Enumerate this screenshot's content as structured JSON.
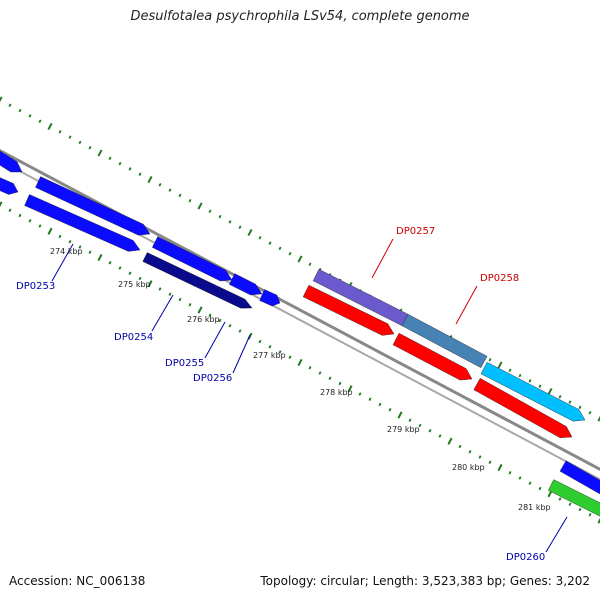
{
  "title": "Desulfotalea psychrophila LSv54, complete genome",
  "footer": {
    "accession": "Accession: NC_006138",
    "stats": "Topology: circular; Length: 3,523,383 bp; Genes: 3,202"
  },
  "colors": {
    "backbone": "#888888",
    "tick": "#1f7a1f",
    "blue": "#0b0bff",
    "dark_blue": "#0a0a8c",
    "purple": "#6a5acd",
    "steel_blue": "#4682b4",
    "light_blue": "#00bfff",
    "red": "#ff0000",
    "green": "#2ecc2e",
    "label_blue": "#0000aa",
    "label_red": "#cc0000"
  },
  "ticks": [
    "274 kbp",
    "275 kbp",
    "276 kbp",
    "277 kbp",
    "278 kbp",
    "279 kbp",
    "280 kbp",
    "281 kbp"
  ],
  "gene_labels": [
    {
      "text": "DP0253",
      "color": "label_blue"
    },
    {
      "text": "DP0254",
      "color": "label_blue"
    },
    {
      "text": "DP0255",
      "color": "label_blue"
    },
    {
      "text": "DP0256",
      "color": "label_blue"
    },
    {
      "text": "DP0257",
      "color": "label_red"
    },
    {
      "text": "DP0258",
      "color": "label_red"
    },
    {
      "text": "DP0260",
      "color": "label_blue"
    }
  ]
}
